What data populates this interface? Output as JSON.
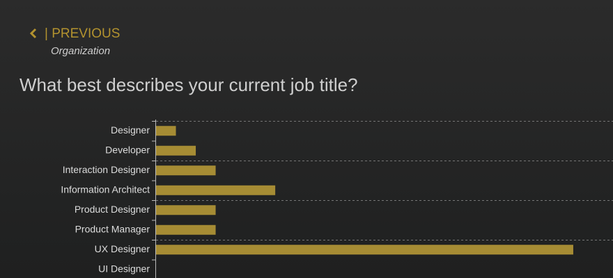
{
  "nav": {
    "label": "| PREVIOUS",
    "section": "Organization"
  },
  "chart_data": {
    "type": "bar",
    "orientation": "horizontal",
    "title": "What best describes your current job title?",
    "categories": [
      "Designer",
      "Developer",
      "Interaction Designer",
      "Information Architect",
      "Product Designer",
      "Product Manager",
      "UX Designer",
      "UI Designer"
    ],
    "values": [
      1,
      2,
      3,
      6,
      3,
      3,
      21,
      0
    ],
    "color": "#a68c34",
    "xlim": [
      0,
      23
    ]
  }
}
